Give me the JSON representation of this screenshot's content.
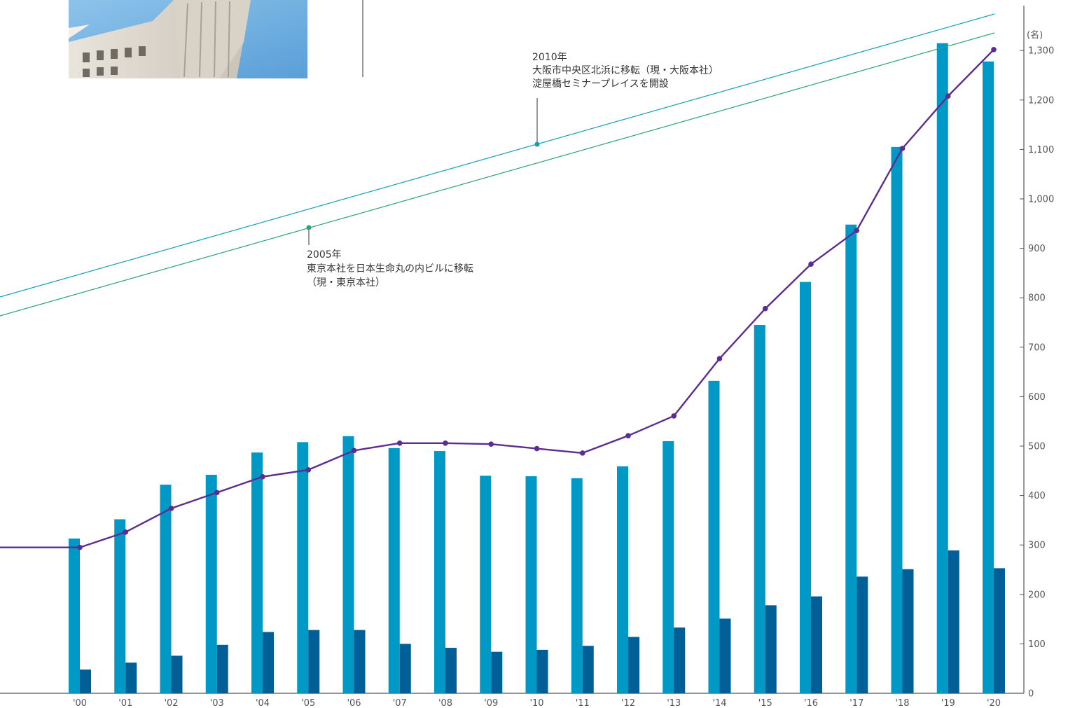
{
  "chart_data": {
    "type": "bar",
    "categories": [
      "'00",
      "'01",
      "'02",
      "'03",
      "'04",
      "'05",
      "'06",
      "'07",
      "'08",
      "'09",
      "'10",
      "'11",
      "'12",
      "'13",
      "'14",
      "'15",
      "'16",
      "'17",
      "'18",
      "'19",
      "'20"
    ],
    "series": [
      {
        "type": "bar",
        "color": "#0099c6",
        "values": [
          313,
          352,
          422,
          442,
          487,
          508,
          520,
          496,
          490,
          440,
          439,
          435,
          459,
          510,
          632,
          745,
          832,
          948,
          1105,
          1315,
          1278
        ]
      },
      {
        "type": "bar",
        "color": "#005f96",
        "values": [
          48,
          62,
          76,
          98,
          124,
          128,
          128,
          100,
          92,
          84,
          88,
          96,
          114,
          133,
          151,
          178,
          196,
          236,
          251,
          289,
          253
        ]
      },
      {
        "type": "line",
        "color": "#5c2d91",
        "values": [
          295,
          326,
          374,
          406,
          438,
          452,
          491,
          506,
          506,
          504,
          495,
          486,
          521,
          561,
          677,
          778,
          868,
          936,
          1102,
          1208,
          1302
        ],
        "lead_in_value": 295
      }
    ],
    "y_axis": {
      "unit": "(名)",
      "min": 0,
      "max": 1300,
      "ticks": [
        "0",
        "100",
        "200",
        "300",
        "400",
        "500",
        "600",
        "700",
        "800",
        "900",
        "1,000",
        "1,100",
        "1,200",
        "1,300"
      ]
    },
    "annotations": [
      {
        "year": "2005",
        "color": "#2aa27e",
        "lines": [
          "2005年",
          "東京本社を日本生命丸の内ビルに移転",
          "（現・東京本社）"
        ]
      },
      {
        "year": "2010",
        "color": "#13a0b5",
        "lines": [
          "2010年",
          "大阪市中央区北浜に移転（現・大阪本社）",
          "淀屋橋セミナープレイスを開設"
        ]
      }
    ]
  },
  "photo": {
    "subject": "office-building-photo"
  }
}
